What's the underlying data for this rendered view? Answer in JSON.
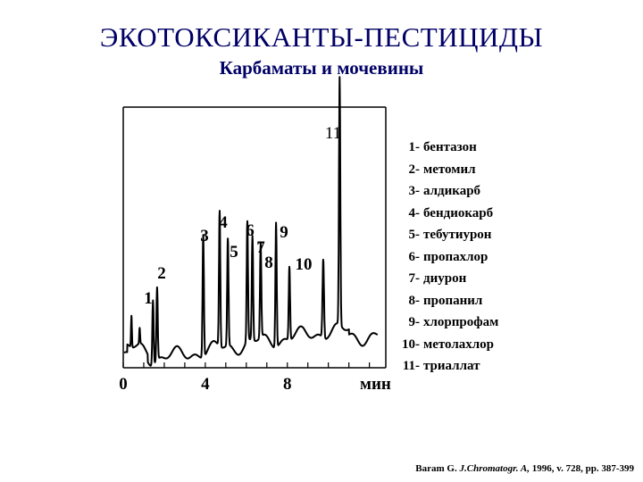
{
  "header": {
    "title": "ЭКОТОКСИКАНТЫ-ПЕСТИЦИДЫ",
    "subtitle": "Карбаматы и мочевины"
  },
  "chart_data": {
    "type": "line",
    "x_unit_label": "мин",
    "xlim": [
      0,
      12.8
    ],
    "ylim": [
      0,
      100
    ],
    "x_ticks": [
      0,
      4,
      8
    ],
    "peaks": [
      {
        "label": "1",
        "x": 1.45,
        "height": 25
      },
      {
        "label": "2",
        "x": 1.65,
        "height": 28
      },
      {
        "label": "3",
        "x": 3.9,
        "height": 47
      },
      {
        "label": "4",
        "x": 4.7,
        "height": 52
      },
      {
        "label": "5",
        "x": 5.1,
        "height": 41
      },
      {
        "label": "6",
        "x": 6.05,
        "height": 46
      },
      {
        "label": "7",
        "x": 6.3,
        "height": 40
      },
      {
        "label": "8",
        "x": 6.7,
        "height": 36
      },
      {
        "label": "9",
        "x": 7.45,
        "height": 48
      },
      {
        "label": "10",
        "x": 8.1,
        "height": 28
      },
      {
        "label": "11",
        "x": 10.55,
        "height": 95
      }
    ],
    "minor_peaks": [
      {
        "x": 0.4,
        "height": 12
      },
      {
        "x": 0.8,
        "height": 6
      },
      {
        "x": 9.75,
        "height": 30
      }
    ],
    "line_color": "#000000"
  },
  "legend": {
    "items": [
      {
        "num": "1",
        "name": "бентазон"
      },
      {
        "num": "2",
        "name": "метомил"
      },
      {
        "num": "3",
        "name": "алдикарб"
      },
      {
        "num": "4",
        "name": "бендиокарб"
      },
      {
        "num": "5",
        "name": "тебутиурон"
      },
      {
        "num": "6",
        "name": "пропахлор"
      },
      {
        "num": "7",
        "name": "диурон"
      },
      {
        "num": "8",
        "name": "пропанил"
      },
      {
        "num": "9",
        "name": "хлорпрофам"
      },
      {
        "num": "10",
        "name": "метолахлор"
      },
      {
        "num": "11",
        "name": "триаллат"
      }
    ]
  },
  "citation": {
    "author": "Baram G.",
    "journal": "J.Chromatogr. A,",
    "details": "1996, v. 728, pp. 387-399"
  }
}
